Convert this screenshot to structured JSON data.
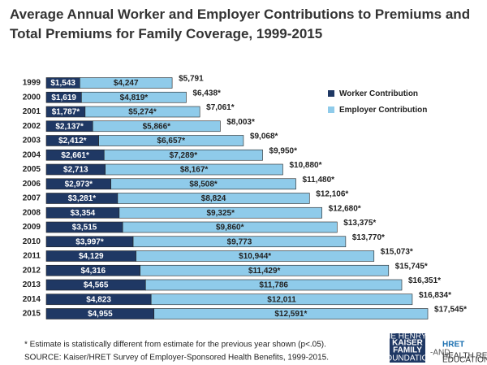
{
  "chart_data": {
    "type": "stacked-bar-horizontal",
    "title": "Average Annual Worker and Employer Contributions to Premiums and Total Premiums for Family Coverage, 1999-2015",
    "categories": [
      "1999",
      "2000",
      "2001",
      "2002",
      "2003",
      "2004",
      "2005",
      "2006",
      "2007",
      "2008",
      "2009",
      "2010",
      "2011",
      "2012",
      "2013",
      "2014",
      "2015"
    ],
    "series": [
      {
        "name": "Worker Contribution",
        "color": "#1f3864",
        "values": [
          1543,
          1619,
          1787,
          2137,
          2412,
          2661,
          2713,
          2973,
          3281,
          3354,
          3515,
          3997,
          4129,
          4316,
          4565,
          4823,
          4955
        ],
        "value_labels": [
          "$1,543",
          "$1,619",
          "$1,787*",
          "$2,137*",
          "$2,412*",
          "$2,661*",
          "$2,713",
          "$2,973*",
          "$3,281*",
          "$3,354",
          "$3,515",
          "$3,997*",
          "$4,129",
          "$4,316",
          "$4,565",
          "$4,823",
          "$4,955"
        ]
      },
      {
        "name": "Employer Contribution",
        "color": "#8fcbea",
        "values": [
          4247,
          4819,
          5274,
          5866,
          6657,
          7289,
          8167,
          8508,
          8824,
          9325,
          9860,
          9773,
          10944,
          11429,
          11786,
          12011,
          12591
        ],
        "value_labels": [
          "$4,247",
          "$4,819*",
          "$5,274*",
          "$5,866*",
          "$6,657*",
          "$7,289*",
          "$8,167*",
          "$8,508*",
          "$8,824",
          "$9,325*",
          "$9,860*",
          "$9,773",
          "$10,944*",
          "$11,429*",
          "$11,786",
          "$12,011",
          "$12,591*"
        ]
      }
    ],
    "totals": {
      "values": [
        5791,
        6438,
        7061,
        8003,
        9068,
        9950,
        10880,
        11480,
        12106,
        12680,
        13375,
        13770,
        15073,
        15745,
        16351,
        16834,
        17545
      ],
      "value_labels": [
        "$5,791",
        "$6,438*",
        "$7,061*",
        "$8,003*",
        "$9,068*",
        "$9,950*",
        "$10,880*",
        "$11,480*",
        "$12,106*",
        "$12,680*",
        "$13,375*",
        "$13,770*",
        "$15,073*",
        "$15,745*",
        "$16,351*",
        "$16,834*",
        "$17,545*"
      ]
    },
    "notes": [
      "* Estimate is statistically different from estimate for the previous year shown (p<.05).",
      "SOURCE:  Kaiser/HRET Survey of Employer-Sponsored Health Benefits, 1999-2015."
    ]
  },
  "logos": {
    "kff": [
      "THE HENRY J.",
      "KAISER",
      "FAMILY",
      "FOUNDATION"
    ],
    "and": "-AND-",
    "hret": "HRET",
    "hret_sub": [
      "HEALTH RESEARCH &",
      "EDUCATIONAL TRUST"
    ]
  }
}
